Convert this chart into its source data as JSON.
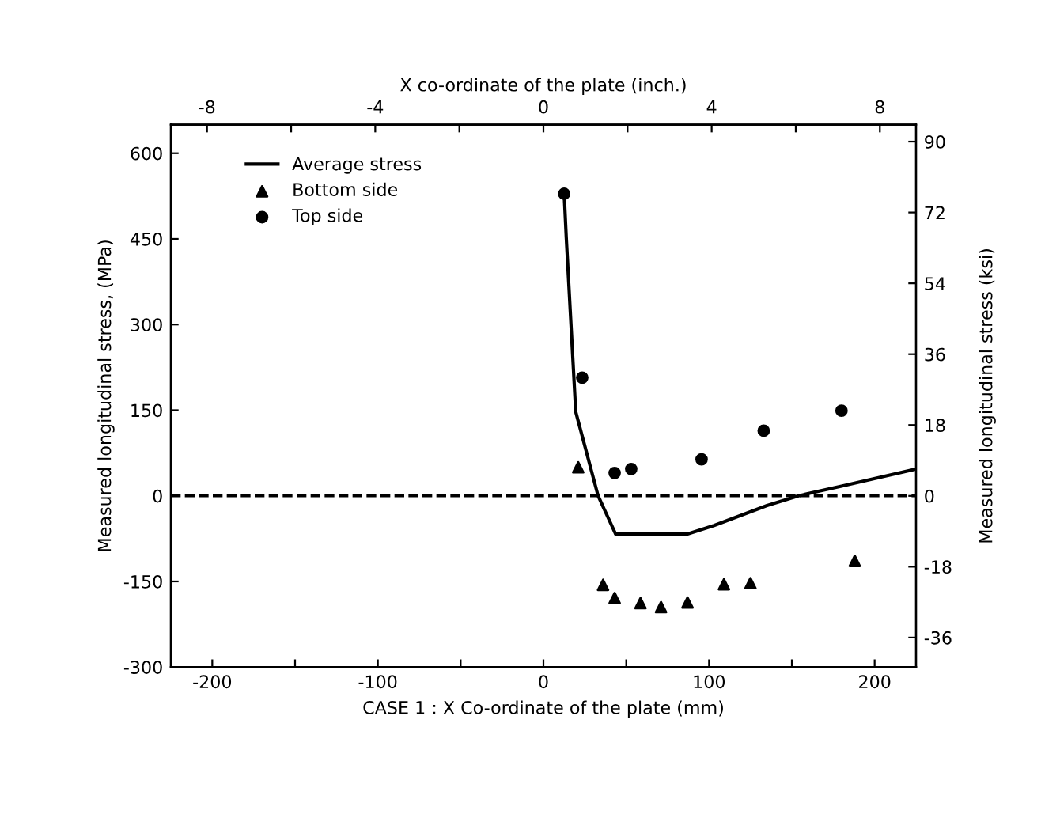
{
  "chart_data": {
    "type": "scatter",
    "xlabel": "CASE 1 : X Co-ordinate of the plate (mm)",
    "x2label": "X co-ordinate of the plate (inch.)",
    "ylabel": "Measured longitudinal stress, (MPa)",
    "y2label": "Measured longitudinal stress (ksi)",
    "xlim": [
      -225,
      225
    ],
    "xticks": [
      -200,
      {
        "value": -150,
        "label": null
      },
      -100,
      {
        "value": -50,
        "label": null
      },
      0,
      {
        "value": 50,
        "label": null
      },
      100,
      {
        "value": 150,
        "label": null
      },
      200
    ],
    "x2lim": [
      -8.86,
      8.86
    ],
    "x2ticks": [
      -8,
      {
        "value": -6,
        "label": null
      },
      -4,
      {
        "value": -2,
        "label": null
      },
      0,
      {
        "value": 2,
        "label": null
      },
      4,
      {
        "value": 6,
        "label": null
      },
      8
    ],
    "ylim": [
      -300,
      650
    ],
    "yticks": [
      -300,
      -150,
      0,
      150,
      300,
      450,
      600
    ],
    "y2lim": [
      -43.5,
      94.3
    ],
    "y2ticks": [
      -36,
      -18,
      0,
      18,
      36,
      54,
      72,
      90
    ],
    "grid": false,
    "legend": "top left",
    "ref_lines": [
      {
        "axis": "y",
        "value": 0,
        "label": null,
        "color": "#000000",
        "line_style": "dashed"
      }
    ],
    "series": [
      {
        "name": "Average stress",
        "type": "line",
        "color": "#000000",
        "marker": "none",
        "line_style": "solid",
        "x": [
          12.5,
          13.8,
          19.5,
          33,
          43.6,
          87,
          103,
          135,
          154,
          180,
          225
        ],
        "values": [
          529,
          451,
          147,
          0,
          -67,
          -67,
          -52,
          -17,
          0,
          17,
          47
        ]
      },
      {
        "name": "Bottom side",
        "color": "#000000",
        "marker": "triangle",
        "x": [
          21,
          36,
          43,
          58.6,
          71,
          87,
          109,
          125,
          188
        ],
        "values": [
          50,
          -156,
          -179,
          -188,
          -195,
          -187,
          -155,
          -153,
          -114
        ]
      },
      {
        "name": "Top side",
        "color": "#000000",
        "marker": "circle",
        "x": [
          12.5,
          23.4,
          43,
          53,
          95.5,
          133,
          180
        ],
        "values": [
          529,
          207,
          40,
          47,
          64,
          114,
          149
        ]
      }
    ]
  }
}
